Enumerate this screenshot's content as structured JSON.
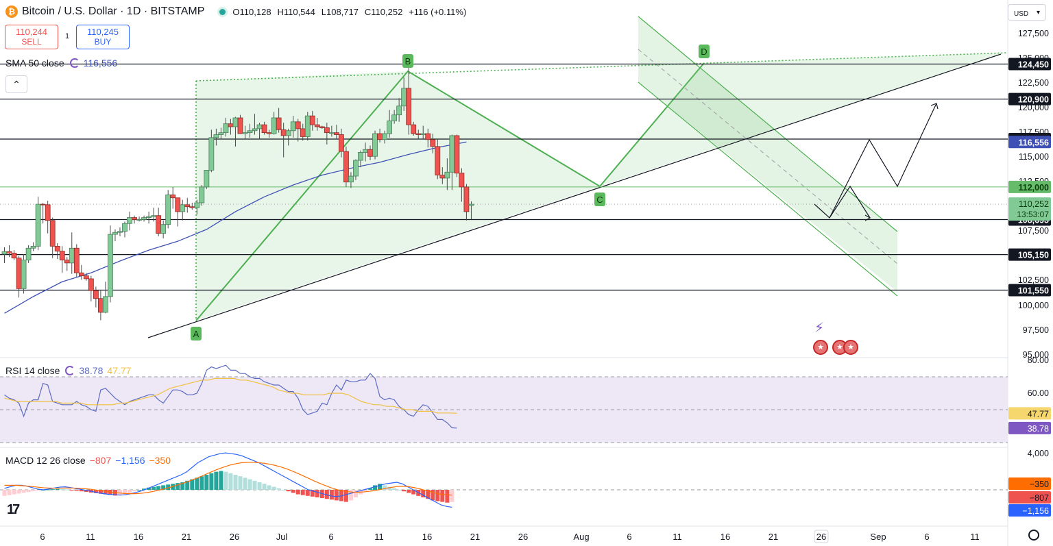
{
  "header": {
    "title": "Bitcoin / U.S. Dollar · 1D · BITSTAMP",
    "open": "O110,128",
    "high": "H110,544",
    "low": "L108,717",
    "close": "C110,252",
    "change": "+116 (+0.11%)"
  },
  "trade": {
    "sell_price": "110,244",
    "sell_label": "SELL",
    "spread": "1",
    "buy_price": "110,245",
    "buy_label": "BUY"
  },
  "indicators": {
    "sma": {
      "label": "SMA 50 close",
      "value": "116,556"
    },
    "rsi": {
      "label": "RSI 14 close",
      "value": "38.78",
      "value2": "47.77"
    },
    "macd": {
      "label": "MACD 12 26 close",
      "hist": "−807",
      "macd": "−1,156",
      "signal": "−350"
    }
  },
  "currency": "USD",
  "colors": {
    "up": "#26a69a",
    "up_fill": "#81c995",
    "down": "#ef5350",
    "sma": "#3f51b5",
    "pattern": "#4caf50",
    "rsi_line": "#5c6bc0",
    "rsi_ma": "#f0c040",
    "rsi_band": "#ede7f6",
    "macd_line": "#2962ff",
    "signal_line": "#ff6d00"
  },
  "chart_data": {
    "type": "candlestick",
    "title": "Bitcoin / U.S. Dollar · 1D · BITSTAMP",
    "y_axis_ticks": [
      "127,500",
      "125,000",
      "122,500",
      "120,000",
      "117,500",
      "115,000",
      "112,500",
      "110,000",
      "107,500",
      "105,000",
      "102,500",
      "100,000",
      "97,500",
      "95,000"
    ],
    "x_axis_ticks": [
      "6",
      "11",
      "16",
      "21",
      "26",
      "Jul",
      "6",
      "11",
      "16",
      "21",
      "26",
      "Aug",
      "6",
      "11",
      "16",
      "21",
      "26",
      "Sep",
      "6",
      "11"
    ],
    "ylim": [
      95000,
      127800
    ],
    "ohlc_approx": [
      [
        105200,
        105900,
        104300,
        105450
      ],
      [
        105450,
        106100,
        104900,
        105300
      ],
      [
        105300,
        105600,
        104600,
        104800
      ],
      [
        104800,
        105000,
        100800,
        101700
      ],
      [
        101700,
        105200,
        101200,
        104600
      ],
      [
        104600,
        106100,
        104300,
        105800
      ],
      [
        105800,
        106400,
        105500,
        106000
      ],
      [
        106000,
        111000,
        105600,
        110250
      ],
      [
        110250,
        110400,
        108300,
        110200
      ],
      [
        110200,
        110600,
        107300,
        108600
      ],
      [
        108600,
        108900,
        104800,
        106000
      ],
      [
        106000,
        106300,
        104700,
        105500
      ],
      [
        105500,
        106000,
        103300,
        104600
      ],
      [
        104600,
        104900,
        103500,
        104300
      ],
      [
        104300,
        107400,
        103200,
        105800
      ],
      [
        105800,
        106200,
        102900,
        103300
      ],
      [
        103300,
        104100,
        102600,
        103000
      ],
      [
        103000,
        103300,
        102500,
        102700
      ],
      [
        102700,
        103000,
        100400,
        101500
      ],
      [
        101500,
        101900,
        99800,
        100700
      ],
      [
        100700,
        101600,
        98500,
        99300
      ],
      [
        99300,
        102400,
        99200,
        100900
      ],
      [
        100900,
        108100,
        100300,
        107200
      ],
      [
        107200,
        107700,
        106500,
        107400
      ],
      [
        107400,
        107900,
        107000,
        107500
      ],
      [
        107500,
        108500,
        106900,
        108300
      ],
      [
        108300,
        109500,
        107600,
        108900
      ],
      [
        108900,
        109100,
        108300,
        108700
      ],
      [
        108700,
        109000,
        108500,
        108700
      ],
      [
        108700,
        109100,
        108500,
        108900
      ],
      [
        108900,
        109500,
        108300,
        109000
      ],
      [
        109000,
        109900,
        108500,
        109100
      ],
      [
        109100,
        109900,
        107000,
        107300
      ],
      [
        107300,
        108600,
        106800,
        108200
      ],
      [
        108200,
        111700,
        107800,
        111200
      ],
      [
        111200,
        112000,
        109800,
        110900
      ],
      [
        110900,
        110900,
        108000,
        109500
      ],
      [
        109500,
        110700,
        108600,
        110200
      ],
      [
        110200,
        110900,
        109400,
        110000
      ],
      [
        110000,
        110400,
        109700,
        109900
      ],
      [
        109900,
        110700,
        109200,
        110400
      ],
      [
        110400,
        112200,
        110100,
        112000
      ],
      [
        112000,
        113700,
        111800,
        113700
      ],
      [
        113700,
        117800,
        113500,
        117000
      ],
      [
        117000,
        117900,
        116200,
        117300
      ],
      [
        117300,
        118000,
        116900,
        117500
      ],
      [
        117500,
        119000,
        117100,
        118400
      ],
      [
        118400,
        118900,
        117300,
        118100
      ],
      [
        118100,
        119100,
        116100,
        119000
      ],
      [
        119000,
        119300,
        117400,
        117400
      ],
      [
        117400,
        118200,
        116800,
        117500
      ],
      [
        117500,
        118400,
        117000,
        117700
      ],
      [
        117700,
        119400,
        117300,
        117900
      ],
      [
        117900,
        118500,
        116900,
        118300
      ],
      [
        118300,
        118600,
        117300,
        117500
      ],
      [
        117500,
        117800,
        117000,
        117400
      ],
      [
        117400,
        119600,
        117300,
        119000
      ],
      [
        119000,
        120000,
        117500,
        117800
      ],
      [
        117800,
        118500,
        115000,
        117200
      ],
      [
        117200,
        117900,
        116200,
        117700
      ],
      [
        117700,
        119200,
        117000,
        118600
      ],
      [
        118600,
        118900,
        116600,
        117900
      ],
      [
        117900,
        118400,
        116700,
        117100
      ],
      [
        117100,
        119600,
        116700,
        119200
      ],
      [
        119200,
        119700,
        117700,
        118300
      ],
      [
        118300,
        119000,
        117700,
        118100
      ],
      [
        118100,
        118200,
        117900,
        118000
      ],
      [
        118000,
        118500,
        116300,
        117500
      ],
      [
        117500,
        118200,
        117100,
        117500
      ],
      [
        117500,
        118300,
        116800,
        117300
      ],
      [
        117300,
        117900,
        115000,
        115600
      ],
      [
        115600,
        116100,
        112000,
        112500
      ],
      [
        112500,
        113500,
        111900,
        113100
      ],
      [
        113100,
        114800,
        112700,
        114700
      ],
      [
        114700,
        115700,
        114000,
        115500
      ],
      [
        115500,
        116500,
        114600,
        115800
      ],
      [
        115800,
        116200,
        114700,
        115100
      ],
      [
        115100,
        117700,
        114800,
        117400
      ],
      [
        117400,
        117900,
        116500,
        116800
      ],
      [
        116800,
        117700,
        116400,
        117400
      ],
      [
        117400,
        119800,
        117000,
        118700
      ],
      [
        118700,
        119800,
        118400,
        119300
      ],
      [
        119300,
        121000,
        118600,
        120200
      ],
      [
        120200,
        123100,
        119700,
        122000
      ],
      [
        122000,
        124450,
        117300,
        118300
      ],
      [
        118300,
        118600,
        117200,
        117400
      ],
      [
        117400,
        117800,
        116900,
        117300
      ],
      [
        117300,
        118200,
        116800,
        117400
      ],
      [
        117400,
        117900,
        116000,
        116800
      ],
      [
        116800,
        117400,
        115400,
        116100
      ],
      [
        116100,
        116900,
        112800,
        113200
      ],
      [
        113200,
        114000,
        112300,
        112900
      ],
      [
        112900,
        114900,
        111700,
        113500
      ],
      [
        113500,
        117300,
        111700,
        117200
      ],
      [
        117200,
        117300,
        113000,
        113400
      ],
      [
        113400,
        113900,
        110500,
        112000
      ],
      [
        112000,
        112300,
        108600,
        109500
      ],
      [
        110128,
        110544,
        108717,
        110252
      ]
    ],
    "sma50_approx": [
      [
        0,
        99200
      ],
      [
        6,
        100900
      ],
      [
        12,
        102400
      ],
      [
        18,
        103300
      ],
      [
        24,
        104500
      ],
      [
        30,
        105600
      ],
      [
        36,
        106500
      ],
      [
        42,
        107700
      ],
      [
        48,
        109500
      ],
      [
        54,
        111000
      ],
      [
        60,
        112200
      ],
      [
        66,
        113200
      ],
      [
        72,
        113900
      ],
      [
        78,
        114500
      ],
      [
        84,
        115300
      ],
      [
        90,
        116000
      ],
      [
        96,
        116556
      ]
    ],
    "horizontal_levels": [
      "124,450",
      "120,900",
      "116,850",
      "112,000",
      "108,695",
      "105,150",
      "101,550"
    ],
    "current_price": "110,252",
    "countdown": "13:53:07",
    "sma_value": "116,556",
    "pattern_points": [
      "A",
      "B",
      "C",
      "D"
    ],
    "rsi": {
      "ticks": [
        "80.00",
        "60.00"
      ],
      "values_approx": [
        59,
        57,
        56,
        54,
        46,
        54,
        56,
        56,
        66,
        65,
        55,
        54,
        53,
        53,
        53,
        55,
        53,
        52,
        50,
        49,
        62,
        63,
        60,
        57,
        55,
        53,
        55,
        56,
        57,
        58,
        59,
        59,
        56,
        54,
        58,
        62,
        62,
        61,
        59,
        59,
        60,
        66,
        74,
        76,
        75,
        76,
        77,
        74,
        74,
        72,
        72,
        70,
        69,
        69,
        67,
        66,
        65,
        65,
        63,
        61,
        61,
        57,
        50,
        47,
        48,
        49,
        54,
        53,
        60,
        65,
        62,
        68,
        67,
        67,
        68,
        68,
        72,
        69,
        58,
        56,
        57,
        56,
        52,
        50,
        47,
        46,
        50,
        53,
        52,
        48,
        44,
        44,
        42,
        39,
        38.78
      ],
      "ma_approx": [
        57,
        56,
        55,
        55,
        55,
        55,
        55,
        55,
        55,
        54,
        54,
        54,
        54,
        53,
        53,
        53,
        53,
        53,
        54,
        54,
        55,
        56,
        57,
        58,
        59,
        61,
        63,
        64,
        65,
        66,
        67,
        68,
        68,
        69,
        69,
        69,
        69,
        68,
        68,
        67,
        66,
        65,
        64,
        62,
        61,
        60,
        60,
        59,
        59,
        59,
        59,
        60,
        60,
        60,
        59,
        57,
        55,
        54,
        53,
        53,
        52,
        52,
        51,
        50,
        50,
        49,
        49,
        49,
        48,
        48,
        48,
        47.77
      ],
      "band": [
        "70",
        "30"
      ]
    },
    "macd": {
      "ticks": [
        "4,000"
      ],
      "hist_approx": [
        -400,
        -350,
        -300,
        -250,
        -200,
        -150,
        -100,
        -50,
        0,
        20,
        40,
        60,
        40,
        20,
        -20,
        -60,
        -100,
        -140,
        -180,
        -220,
        -260,
        -300,
        -340,
        -380,
        -360,
        -300,
        -220,
        -100,
        0,
        80,
        150,
        200,
        250,
        300,
        350,
        400,
        450,
        500,
        600,
        700,
        800,
        900,
        1000,
        1100,
        1200,
        1250,
        1200,
        1100,
        1000,
        900,
        800,
        700,
        600,
        500,
        400,
        300,
        200,
        100,
        0,
        -100,
        -200,
        -300,
        -350,
        -400,
        -450,
        -500,
        -550,
        -600,
        -650,
        -700,
        -750,
        -800,
        -700,
        -500,
        -300,
        -100,
        100,
        300,
        400,
        300,
        200,
        100,
        0,
        -100,
        -200,
        -300,
        -400,
        -500,
        -600,
        -700,
        -750,
        -800,
        -850,
        -807
      ],
      "line_approx": [
        100,
        200,
        300,
        300,
        250,
        150,
        50,
        0,
        50,
        120,
        180,
        200,
        150,
        80,
        20,
        -50,
        -120,
        -200,
        -260,
        -300,
        -330,
        -350,
        -320,
        -250,
        -150,
        -50,
        100,
        250,
        400,
        550,
        700,
        850,
        1000,
        1200,
        1500,
        1800,
        2000,
        2200,
        2300,
        2400,
        2450,
        2400,
        2350,
        2250,
        2100,
        1950,
        1800,
        1600,
        1400,
        1200,
        1000,
        800,
        600,
        400,
        200,
        0,
        -100,
        -200,
        -300,
        -400,
        -450,
        -400,
        -300,
        -200,
        -100,
        0,
        100,
        200,
        300,
        400,
        450,
        500,
        400,
        200,
        0,
        -200,
        -400,
        -600,
        -800,
        -1000,
        -1100,
        -1156
      ],
      "signal_approx": [
        300,
        300,
        300,
        280,
        250,
        220,
        180,
        140,
        120,
        110,
        110,
        120,
        120,
        110,
        90,
        60,
        20,
        -30,
        -80,
        -130,
        -180,
        -220,
        -250,
        -260,
        -250,
        -220,
        -170,
        -100,
        -20,
        70,
        170,
        280,
        400,
        520,
        660,
        800,
        960,
        1120,
        1280,
        1420,
        1550,
        1660,
        1740,
        1800,
        1830,
        1830,
        1800,
        1760,
        1700,
        1620,
        1520,
        1400,
        1260,
        1100,
        940,
        770,
        600,
        440,
        290,
        150,
        30,
        -60,
        -120,
        -150,
        -160,
        -140,
        -100,
        -50,
        20,
        100,
        160,
        220,
        240,
        220,
        160,
        80,
        -20,
        -120,
        -220,
        -290,
        -330,
        -350
      ]
    }
  }
}
